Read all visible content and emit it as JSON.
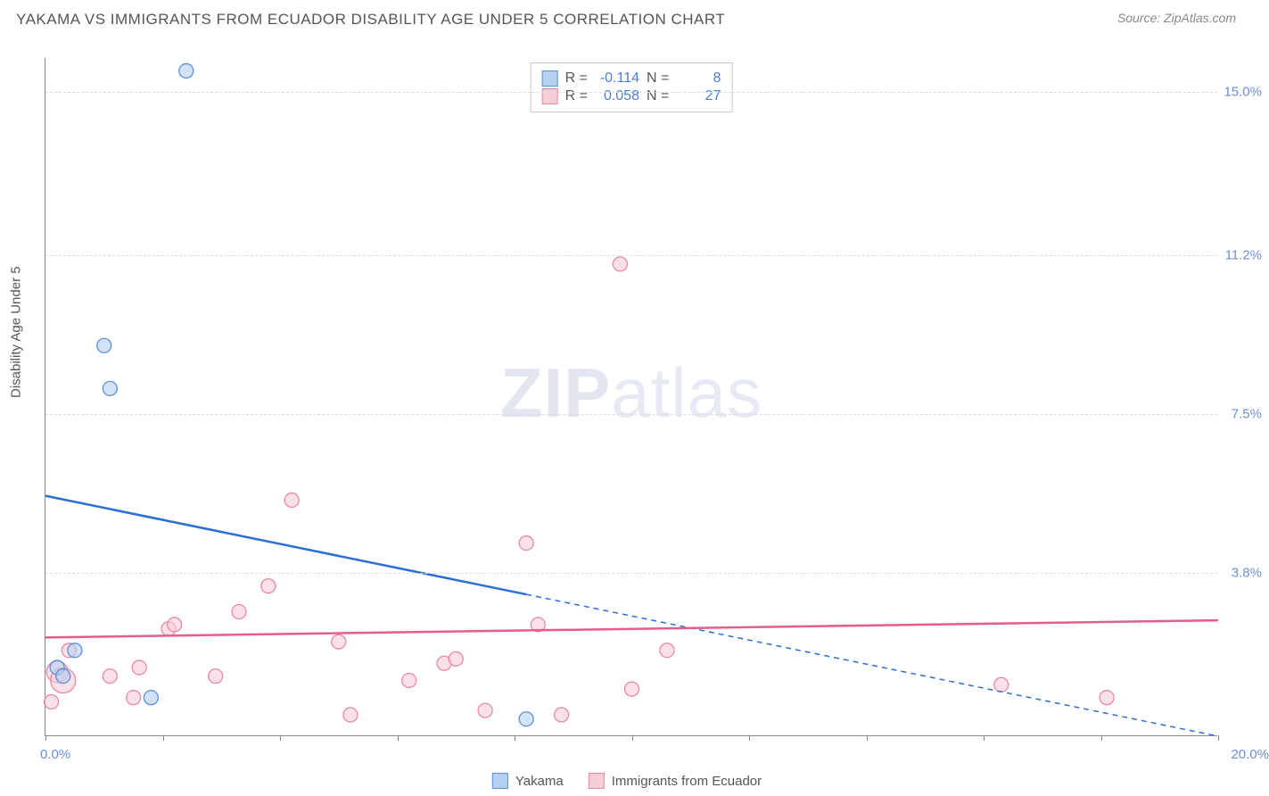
{
  "title": "YAKAMA VS IMMIGRANTS FROM ECUADOR DISABILITY AGE UNDER 5 CORRELATION CHART",
  "source": "Source: ZipAtlas.com",
  "watermark_bold": "ZIP",
  "watermark_rest": "atlas",
  "y_axis_title": "Disability Age Under 5",
  "chart": {
    "type": "scatter",
    "xlim": [
      0.0,
      20.0
    ],
    "ylim": [
      0.0,
      15.8
    ],
    "x_ticks_pct": [
      0,
      2,
      4,
      6,
      8,
      10,
      12,
      14,
      16,
      18,
      20
    ],
    "y_gridlines": [
      {
        "v": 15.0,
        "label": "15.0%"
      },
      {
        "v": 11.2,
        "label": "11.2%"
      },
      {
        "v": 7.5,
        "label": "7.5%"
      },
      {
        "v": 3.8,
        "label": "3.8%"
      }
    ],
    "x_labels": [
      {
        "v": 0.0,
        "label": "0.0%",
        "align": "left"
      },
      {
        "v": 20.0,
        "label": "20.0%",
        "align": "right"
      }
    ],
    "series": {
      "yakama": {
        "color_fill": "#b5d1f2",
        "color_stroke": "#5a8fdc",
        "line_color": "#2a6fd6",
        "R": "-0.114",
        "N": "8",
        "legend_label": "Yakama",
        "trend": {
          "x1": 0.0,
          "y1": 5.6,
          "x2": 20.0,
          "y2": 0.0,
          "solid_until_x": 8.2
        },
        "points": [
          {
            "x": 0.2,
            "y": 1.6,
            "r": 8
          },
          {
            "x": 0.3,
            "y": 1.4,
            "r": 8
          },
          {
            "x": 0.5,
            "y": 2.0,
            "r": 8
          },
          {
            "x": 1.0,
            "y": 9.1,
            "r": 8
          },
          {
            "x": 1.1,
            "y": 8.1,
            "r": 8
          },
          {
            "x": 1.8,
            "y": 0.9,
            "r": 8
          },
          {
            "x": 2.4,
            "y": 15.5,
            "r": 8
          },
          {
            "x": 8.2,
            "y": 0.4,
            "r": 8
          }
        ]
      },
      "ecuador": {
        "color_fill": "#f7cdd8",
        "color_stroke": "#e68aa2",
        "line_color": "#e75d87",
        "R": "0.058",
        "N": "27",
        "legend_label": "Immigrants from Ecuador",
        "trend": {
          "x1": 0.0,
          "y1": 2.3,
          "x2": 20.0,
          "y2": 2.7,
          "solid_until_x": 20.0
        },
        "points": [
          {
            "x": 0.1,
            "y": 0.8,
            "r": 8
          },
          {
            "x": 0.2,
            "y": 1.5,
            "r": 12
          },
          {
            "x": 0.3,
            "y": 1.3,
            "r": 14
          },
          {
            "x": 0.4,
            "y": 2.0,
            "r": 8
          },
          {
            "x": 1.1,
            "y": 1.4,
            "r": 8
          },
          {
            "x": 1.5,
            "y": 0.9,
            "r": 8
          },
          {
            "x": 1.6,
            "y": 1.6,
            "r": 8
          },
          {
            "x": 2.1,
            "y": 2.5,
            "r": 8
          },
          {
            "x": 2.2,
            "y": 2.6,
            "r": 8
          },
          {
            "x": 2.9,
            "y": 1.4,
            "r": 8
          },
          {
            "x": 3.3,
            "y": 2.9,
            "r": 8
          },
          {
            "x": 3.8,
            "y": 3.5,
            "r": 8
          },
          {
            "x": 4.2,
            "y": 5.5,
            "r": 8
          },
          {
            "x": 5.0,
            "y": 2.2,
            "r": 8
          },
          {
            "x": 5.2,
            "y": 0.5,
            "r": 8
          },
          {
            "x": 6.2,
            "y": 1.3,
            "r": 8
          },
          {
            "x": 6.8,
            "y": 1.7,
            "r": 8
          },
          {
            "x": 7.0,
            "y": 1.8,
            "r": 8
          },
          {
            "x": 7.5,
            "y": 0.6,
            "r": 8
          },
          {
            "x": 8.2,
            "y": 4.5,
            "r": 8
          },
          {
            "x": 8.4,
            "y": 2.6,
            "r": 8
          },
          {
            "x": 8.8,
            "y": 0.5,
            "r": 8
          },
          {
            "x": 9.8,
            "y": 11.0,
            "r": 8
          },
          {
            "x": 10.0,
            "y": 1.1,
            "r": 8
          },
          {
            "x": 10.6,
            "y": 2.0,
            "r": 8
          },
          {
            "x": 16.3,
            "y": 1.2,
            "r": 8
          },
          {
            "x": 18.1,
            "y": 0.9,
            "r": 8
          }
        ]
      }
    }
  },
  "stat_labels": {
    "R": "R =",
    "N": "N ="
  }
}
